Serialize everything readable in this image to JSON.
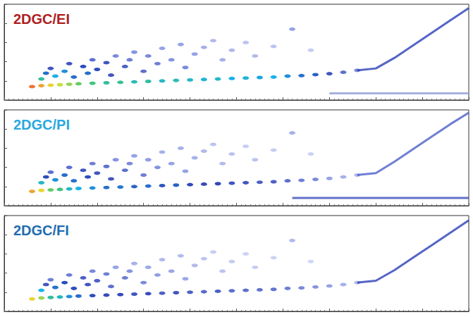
{
  "chart_data": [
    {
      "type": "scatter",
      "title": "2DGC/EI",
      "xlim": [
        0,
        100
      ],
      "xticks": [
        0,
        10,
        20,
        30,
        40,
        50,
        60,
        70,
        80,
        90,
        100
      ],
      "ylim": [
        0,
        10
      ],
      "yticks": [
        0,
        2,
        4,
        6,
        8,
        10
      ],
      "z_range": [
        0,
        100
      ],
      "grid": false,
      "tick_labels": false,
      "series": [
        {
          "type": "scatter",
          "values": [
            [
              6,
              1.4,
              95
            ],
            [
              8,
              1.5,
              90
            ],
            [
              10,
              1.55,
              85
            ],
            [
              12,
              1.6,
              80
            ],
            [
              14,
              1.65,
              75
            ],
            [
              16,
              1.7,
              70
            ],
            [
              19,
              1.75,
              65
            ],
            [
              22,
              1.8,
              60
            ],
            [
              25,
              1.85,
              62
            ],
            [
              28,
              1.9,
              58
            ],
            [
              31,
              1.95,
              60
            ],
            [
              34,
              2.0,
              55
            ],
            [
              37,
              2.05,
              58
            ],
            [
              40,
              2.1,
              55
            ],
            [
              43,
              2.15,
              52
            ],
            [
              46,
              2.2,
              55
            ],
            [
              49,
              2.25,
              50
            ],
            [
              52,
              2.3,
              52
            ],
            [
              55,
              2.35,
              48
            ],
            [
              58,
              2.4,
              50
            ],
            [
              61,
              2.5,
              45
            ],
            [
              64,
              2.55,
              40
            ],
            [
              67,
              2.65,
              38
            ],
            [
              70,
              2.75,
              30
            ],
            [
              73,
              2.9,
              25
            ],
            [
              76,
              3.1,
              20
            ],
            [
              8,
              2.2,
              60
            ],
            [
              9,
              2.8,
              40
            ],
            [
              10,
              3.3,
              30
            ],
            [
              11,
              2.5,
              50
            ],
            [
              13,
              3.0,
              45
            ],
            [
              14,
              3.8,
              30
            ],
            [
              15,
              2.4,
              40
            ],
            [
              17,
              3.5,
              35
            ],
            [
              18,
              2.8,
              40
            ],
            [
              19,
              4.2,
              25
            ],
            [
              20,
              3.2,
              35
            ],
            [
              22,
              3.9,
              30
            ],
            [
              23,
              2.6,
              30
            ],
            [
              24,
              4.6,
              20
            ],
            [
              26,
              3.5,
              28
            ],
            [
              27,
              4.2,
              22
            ],
            [
              28,
              5.0,
              18
            ],
            [
              30,
              3.0,
              25
            ],
            [
              31,
              4.6,
              20
            ],
            [
              33,
              3.8,
              22
            ],
            [
              34,
              5.4,
              15
            ],
            [
              36,
              4.2,
              18
            ],
            [
              38,
              5.8,
              15
            ],
            [
              39,
              3.4,
              20
            ],
            [
              41,
              4.8,
              15
            ],
            [
              43,
              5.5,
              12
            ],
            [
              45,
              6.2,
              10
            ],
            [
              47,
              4.2,
              12
            ],
            [
              49,
              5.2,
              10
            ],
            [
              52,
              6.0,
              8
            ],
            [
              54,
              4.6,
              10
            ],
            [
              58,
              5.6,
              8
            ],
            [
              62,
              7.4,
              15
            ],
            [
              66,
              5.2,
              6
            ]
          ]
        },
        {
          "type": "line",
          "color": "#2a3fb8",
          "values": [
            [
              76,
              3.1
            ],
            [
              80,
              3.3
            ],
            [
              84,
              4.4
            ],
            [
              88,
              5.7
            ],
            [
              92,
              7.0
            ],
            [
              96,
              8.3
            ],
            [
              100,
              9.6
            ]
          ]
        },
        {
          "type": "line",
          "color": "#8f9fd8",
          "values": [
            [
              70,
              0.7
            ],
            [
              100,
              0.7
            ]
          ]
        }
      ]
    },
    {
      "type": "scatter",
      "title": "2DGC/PI",
      "xlim": [
        0,
        100
      ],
      "xticks": [
        0,
        10,
        20,
        30,
        40,
        50,
        60,
        70,
        80,
        90,
        100
      ],
      "ylim": [
        0,
        10
      ],
      "yticks": [
        0,
        2,
        4,
        6,
        8,
        10
      ],
      "z_range": [
        0,
        100
      ],
      "grid": false,
      "tick_labels": false,
      "series": [
        {
          "type": "scatter",
          "values": [
            [
              6,
              1.5,
              90
            ],
            [
              8,
              1.6,
              85
            ],
            [
              10,
              1.65,
              70
            ],
            [
              12,
              1.7,
              65
            ],
            [
              14,
              1.75,
              55
            ],
            [
              16,
              1.8,
              50
            ],
            [
              19,
              1.85,
              45
            ],
            [
              22,
              1.9,
              40
            ],
            [
              25,
              1.95,
              42
            ],
            [
              28,
              2.0,
              38
            ],
            [
              31,
              2.05,
              40
            ],
            [
              34,
              2.1,
              36
            ],
            [
              37,
              2.15,
              38
            ],
            [
              40,
              2.2,
              34
            ],
            [
              43,
              2.25,
              32
            ],
            [
              46,
              2.3,
              34
            ],
            [
              49,
              2.35,
              30
            ],
            [
              52,
              2.4,
              30
            ],
            [
              55,
              2.45,
              28
            ],
            [
              58,
              2.5,
              28
            ],
            [
              61,
              2.6,
              25
            ],
            [
              64,
              2.65,
              22
            ],
            [
              67,
              2.75,
              20
            ],
            [
              70,
              2.85,
              15
            ],
            [
              73,
              3.0,
              12
            ],
            [
              76,
              3.2,
              10
            ],
            [
              8,
              2.4,
              55
            ],
            [
              9,
              3.0,
              35
            ],
            [
              10,
              3.5,
              25
            ],
            [
              11,
              2.7,
              45
            ],
            [
              13,
              3.2,
              40
            ],
            [
              14,
              4.0,
              25
            ],
            [
              15,
              2.6,
              40
            ],
            [
              17,
              3.7,
              30
            ],
            [
              18,
              3.0,
              35
            ],
            [
              19,
              4.4,
              22
            ],
            [
              20,
              3.4,
              30
            ],
            [
              22,
              4.1,
              25
            ],
            [
              23,
              2.8,
              30
            ],
            [
              24,
              4.8,
              18
            ],
            [
              26,
              3.7,
              25
            ],
            [
              27,
              4.4,
              20
            ],
            [
              28,
              5.2,
              15
            ],
            [
              30,
              3.2,
              22
            ],
            [
              31,
              4.8,
              16
            ],
            [
              33,
              4.0,
              18
            ],
            [
              34,
              5.6,
              12
            ],
            [
              36,
              4.4,
              15
            ],
            [
              38,
              6.0,
              12
            ],
            [
              39,
              3.6,
              15
            ],
            [
              41,
              5.0,
              12
            ],
            [
              43,
              5.7,
              10
            ],
            [
              45,
              6.4,
              8
            ],
            [
              47,
              4.4,
              10
            ],
            [
              49,
              5.4,
              8
            ],
            [
              52,
              6.2,
              6
            ],
            [
              54,
              4.8,
              8
            ],
            [
              58,
              5.8,
              6
            ],
            [
              62,
              7.6,
              12
            ],
            [
              66,
              5.4,
              5
            ]
          ]
        },
        {
          "type": "line",
          "color": "#4a5fc8",
          "values": [
            [
              76,
              3.2
            ],
            [
              80,
              3.4
            ],
            [
              84,
              4.6
            ],
            [
              88,
              5.9
            ],
            [
              92,
              7.2
            ],
            [
              96,
              8.5
            ],
            [
              100,
              9.7
            ]
          ]
        },
        {
          "type": "line",
          "color": "#3a4fb8",
          "values": [
            [
              62,
              0.8
            ],
            [
              100,
              0.8
            ]
          ]
        }
      ]
    },
    {
      "type": "scatter",
      "title": "2DGC/FI",
      "xlim": [
        0,
        100
      ],
      "xticks": [
        0,
        10,
        20,
        30,
        40,
        50,
        60,
        70,
        80,
        90,
        100
      ],
      "ylim": [
        0,
        10
      ],
      "yticks": [
        0,
        2,
        4,
        6,
        8,
        10
      ],
      "z_range": [
        0,
        100
      ],
      "grid": false,
      "tick_labels": false,
      "series": [
        {
          "type": "scatter",
          "values": [
            [
              6,
              1.3,
              85
            ],
            [
              8,
              1.4,
              75
            ],
            [
              10,
              1.45,
              60
            ],
            [
              12,
              1.5,
              55
            ],
            [
              14,
              1.55,
              45
            ],
            [
              16,
              1.6,
              40
            ],
            [
              19,
              1.65,
              35
            ],
            [
              22,
              1.7,
              32
            ],
            [
              25,
              1.75,
              34
            ],
            [
              28,
              1.8,
              30
            ],
            [
              31,
              1.85,
              32
            ],
            [
              34,
              1.9,
              28
            ],
            [
              37,
              1.95,
              30
            ],
            [
              40,
              2.0,
              28
            ],
            [
              43,
              2.05,
              26
            ],
            [
              46,
              2.1,
              28
            ],
            [
              49,
              2.15,
              25
            ],
            [
              52,
              2.2,
              25
            ],
            [
              55,
              2.25,
              24
            ],
            [
              58,
              2.3,
              24
            ],
            [
              61,
              2.4,
              22
            ],
            [
              64,
              2.45,
              20
            ],
            [
              67,
              2.55,
              18
            ],
            [
              70,
              2.65,
              15
            ],
            [
              73,
              2.8,
              12
            ],
            [
              76,
              3.0,
              10
            ],
            [
              8,
              2.2,
              50
            ],
            [
              9,
              2.8,
              30
            ],
            [
              10,
              3.3,
              22
            ],
            [
              11,
              2.5,
              40
            ],
            [
              13,
              3.0,
              35
            ],
            [
              14,
              3.8,
              22
            ],
            [
              15,
              2.4,
              35
            ],
            [
              17,
              3.5,
              28
            ],
            [
              18,
              2.8,
              30
            ],
            [
              19,
              4.2,
              20
            ],
            [
              20,
              3.2,
              28
            ],
            [
              22,
              3.9,
              22
            ],
            [
              23,
              2.6,
              25
            ],
            [
              24,
              4.6,
              15
            ],
            [
              26,
              3.5,
              22
            ],
            [
              27,
              4.2,
              18
            ],
            [
              28,
              5.0,
              12
            ],
            [
              30,
              3.0,
              20
            ],
            [
              31,
              4.6,
              14
            ],
            [
              33,
              3.8,
              16
            ],
            [
              34,
              5.4,
              10
            ],
            [
              36,
              4.2,
              14
            ],
            [
              38,
              5.8,
              10
            ],
            [
              39,
              3.4,
              14
            ],
            [
              41,
              4.8,
              10
            ],
            [
              43,
              5.5,
              8
            ],
            [
              45,
              6.2,
              6
            ],
            [
              47,
              4.2,
              8
            ],
            [
              49,
              5.2,
              6
            ],
            [
              52,
              6.0,
              5
            ],
            [
              54,
              4.6,
              6
            ],
            [
              58,
              5.6,
              5
            ],
            [
              62,
              7.4,
              10
            ],
            [
              66,
              5.2,
              4
            ]
          ]
        },
        {
          "type": "line",
          "color": "#2a3fb8",
          "values": [
            [
              76,
              3.0
            ],
            [
              80,
              3.2
            ],
            [
              84,
              4.3
            ],
            [
              88,
              5.6
            ],
            [
              92,
              6.9
            ],
            [
              96,
              8.2
            ],
            [
              100,
              9.5
            ]
          ]
        }
      ]
    }
  ]
}
